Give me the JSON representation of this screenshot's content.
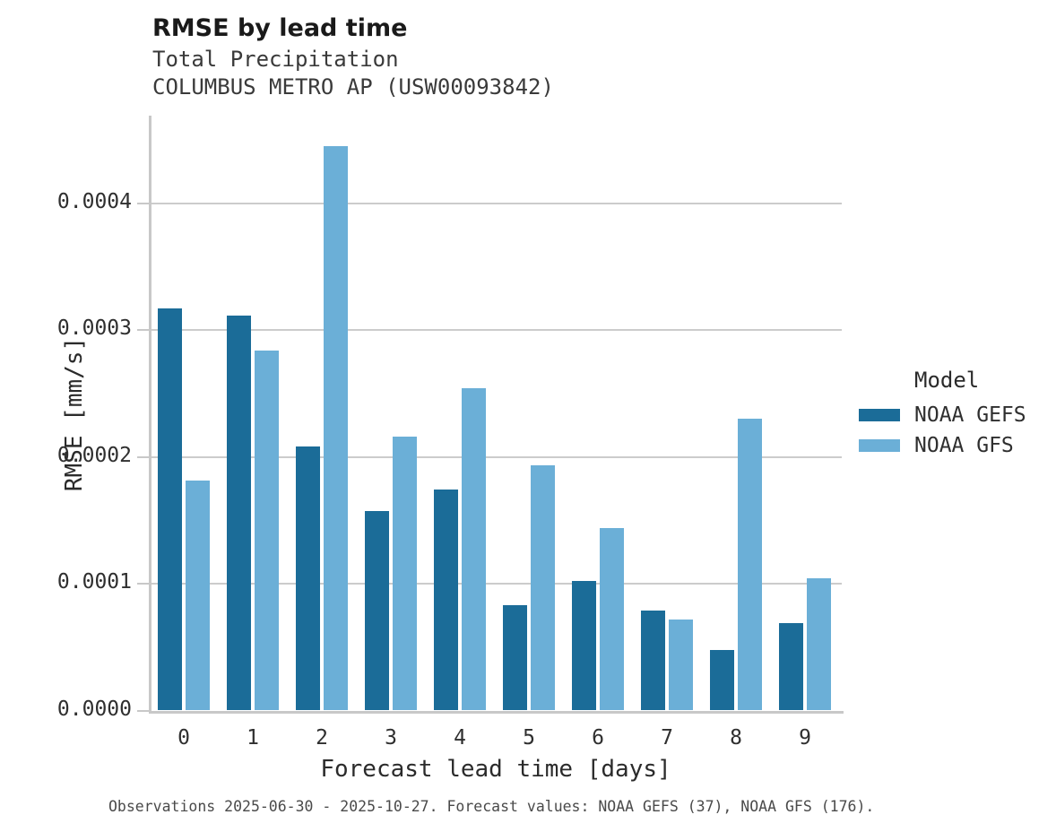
{
  "header": {
    "title": "RMSE by lead time",
    "subtitle_line1": "Total Precipitation",
    "subtitle_line2": "COLUMBUS METRO AP (USW00093842)"
  },
  "chart_data": {
    "type": "bar",
    "title": "RMSE by lead time",
    "subtitle_line1": "Total Precipitation",
    "subtitle_line2": "COLUMBUS METRO AP (USW00093842)",
    "categories": [
      "0",
      "1",
      "2",
      "3",
      "4",
      "5",
      "6",
      "7",
      "8",
      "9"
    ],
    "series": [
      {
        "name": "NOAA GEFS",
        "color": "#1b6c98",
        "values": [
          0.000317,
          0.000311,
          0.000208,
          0.000157,
          0.000174,
          8.3e-05,
          0.000102,
          7.9e-05,
          4.8e-05,
          6.9e-05
        ]
      },
      {
        "name": "NOAA GFS",
        "color": "#6bafd7",
        "values": [
          0.000181,
          0.000284,
          0.000445,
          0.000216,
          0.000254,
          0.000193,
          0.000144,
          7.2e-05,
          0.00023,
          0.000104
        ]
      }
    ],
    "xlabel": "Forecast lead time [days]",
    "ylabel": "RMSE [mm/s]",
    "ylim": [
      0,
      0.00047
    ],
    "yticks": [
      0,
      0.0001,
      0.0002,
      0.0003,
      0.0004
    ],
    "ytick_labels": [
      "0.0000",
      "0.0001",
      "0.0002",
      "0.0003",
      "0.0004"
    ],
    "legend_title": "Model",
    "legend_position": "right",
    "grid": true,
    "grid_color": "#cccccc",
    "axis_color": "#c8c8c8"
  },
  "footer": {
    "note": "Observations 2025-06-30 - 2025-10-27. Forecast values: NOAA GEFS (37), NOAA GFS (176)."
  }
}
